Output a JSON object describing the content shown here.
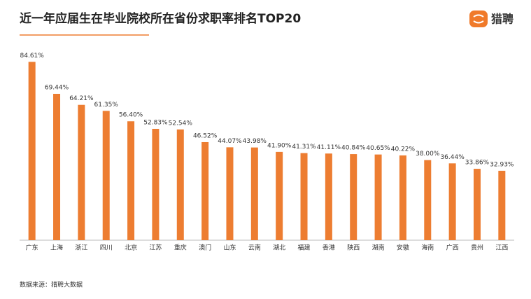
{
  "brand": "猎聘",
  "chart_data": {
    "type": "bar",
    "title": "近一年应届生在毕业院校所在省份求职率排名TOP20",
    "source": "数据来源：猎聘大数据",
    "color": "#ed7d31",
    "categories": [
      "广东",
      "上海",
      "浙江",
      "四川",
      "北京",
      "江苏",
      "重庆",
      "澳门",
      "山东",
      "云南",
      "湖北",
      "福建",
      "香港",
      "陕西",
      "湖南",
      "安徽",
      "海南",
      "广西",
      "贵州",
      "江西"
    ],
    "values": [
      84.61,
      69.44,
      64.21,
      61.35,
      56.4,
      52.83,
      52.54,
      46.52,
      44.07,
      43.98,
      41.9,
      41.31,
      41.11,
      40.84,
      40.65,
      40.22,
      38.0,
      36.44,
      33.86,
      32.93
    ],
    "value_labels": [
      "84.61%",
      "69.44%",
      "64.21%",
      "61.35%",
      "56.40%",
      "52.83%",
      "52.54%",
      "46.52%",
      "44.07%",
      "43.98%",
      "41.90%",
      "41.31%",
      "41.11%",
      "40.84%",
      "40.65%",
      "40.22%",
      "38.00%",
      "36.44%",
      "33.86%",
      "32.93%"
    ]
  }
}
